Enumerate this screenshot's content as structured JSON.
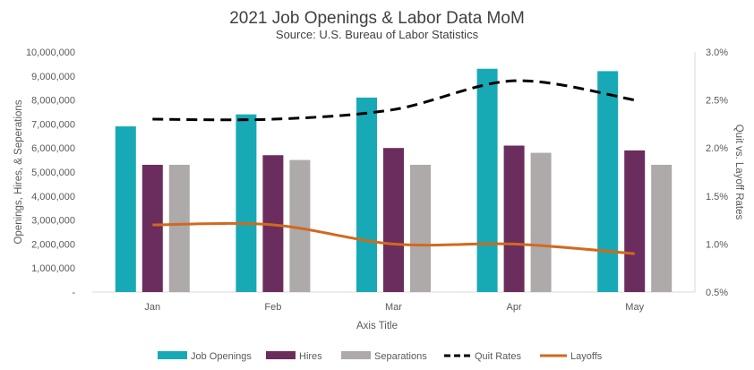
{
  "chart_data": {
    "type": "bar",
    "title": "2021 Job Openings & Labor Data MoM",
    "subtitle": "Source: U.S. Bureau of Labor Statistics",
    "categories": [
      "Jan",
      "Feb",
      "Mar",
      "Apr",
      "May"
    ],
    "xlabel": "Axis Title",
    "ylabel": "Openings, Hires, & Seperations",
    "y2label": "Quit vs. Layoff Rates",
    "ylim": [
      0,
      10000000
    ],
    "y2lim": [
      0.5,
      3.0
    ],
    "yticks": [
      "-",
      "1,000,000",
      "2,000,000",
      "3,000,000",
      "4,000,000",
      "5,000,000",
      "6,000,000",
      "7,000,000",
      "8,000,000",
      "9,000,000",
      "10,000,000"
    ],
    "y2ticks": [
      "0.5%",
      "1.0%",
      "1.5%",
      "2.0%",
      "2.5%",
      "3.0%"
    ],
    "grid": false,
    "legend_position": "bottom",
    "series": [
      {
        "name": "Job Openings",
        "kind": "bar",
        "axis": "left",
        "color": "#17A9B5",
        "values": [
          6900000,
          7400000,
          8100000,
          9300000,
          9200000
        ]
      },
      {
        "name": "Hires",
        "kind": "bar",
        "axis": "left",
        "color": "#6B2D5E",
        "values": [
          5300000,
          5700000,
          6000000,
          6100000,
          5900000
        ]
      },
      {
        "name": "Separations",
        "kind": "bar",
        "axis": "left",
        "color": "#AEAAAA",
        "values": [
          5300000,
          5500000,
          5300000,
          5800000,
          5300000
        ]
      },
      {
        "name": "Quit Rates",
        "kind": "line",
        "style": "dashed",
        "axis": "right",
        "color": "#000000",
        "values": [
          2.3,
          2.3,
          2.4,
          2.7,
          2.5
        ]
      },
      {
        "name": "Layoffs",
        "kind": "line",
        "style": "solid",
        "axis": "right",
        "color": "#D2691E",
        "values": [
          1.2,
          1.2,
          1.0,
          1.0,
          0.9
        ]
      }
    ]
  }
}
